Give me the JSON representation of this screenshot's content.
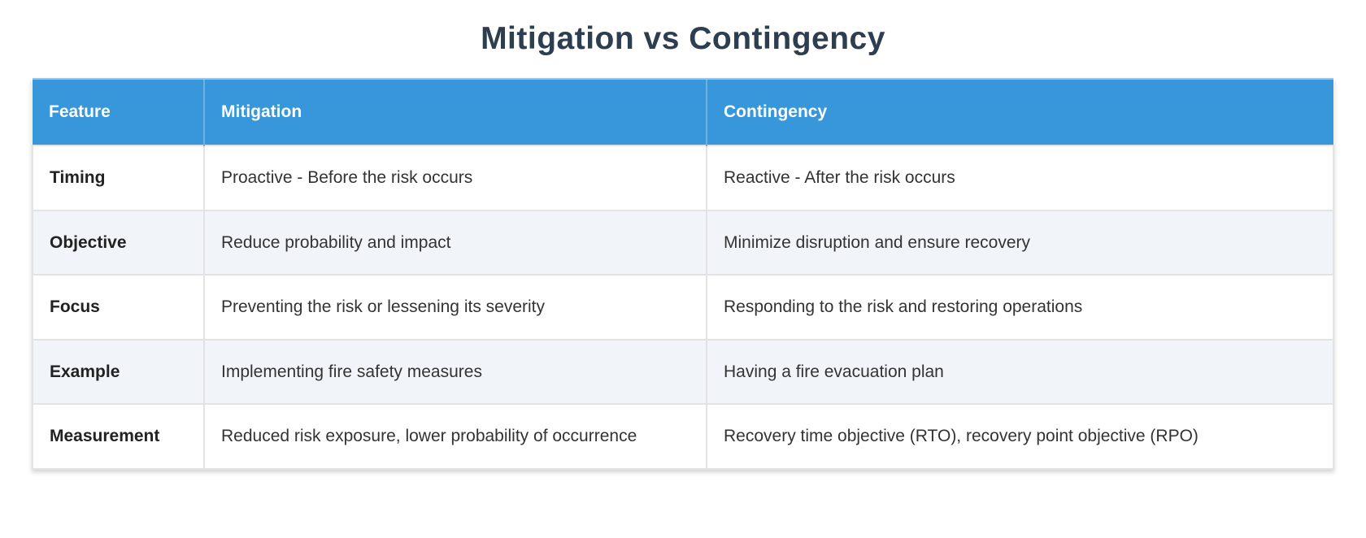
{
  "page": {
    "title": "Mitigation vs Contingency"
  },
  "table": {
    "columns": [
      {
        "id": "feature",
        "label": "Feature"
      },
      {
        "id": "mitigation",
        "label": "Mitigation"
      },
      {
        "id": "contingency",
        "label": "Contingency"
      }
    ],
    "rows": [
      {
        "feature": "Timing",
        "mitigation": "Proactive - Before the risk occurs",
        "contingency": "Reactive - After the risk occurs"
      },
      {
        "feature": "Objective",
        "mitigation": "Reduce probability and impact",
        "contingency": "Minimize disruption and ensure recovery"
      },
      {
        "feature": "Focus",
        "mitigation": "Preventing the risk or lessening its severity",
        "contingency": "Responding to the risk and restoring operations"
      },
      {
        "feature": "Example",
        "mitigation": "Implementing fire safety measures",
        "contingency": "Having a fire evacuation plan"
      },
      {
        "feature": "Measurement",
        "mitigation": "Reduced risk exposure, lower probability of occurrence",
        "contingency": "Recovery time objective (RTO), recovery point objective (RPO)"
      }
    ]
  },
  "colors": {
    "header_bg": "#3797da",
    "header_text": "#ffffff",
    "header_divider": "#6cb1e1",
    "row_bg": "#ffffff",
    "row_alt_bg": "#f1f5f9",
    "border": "#e3e3e3",
    "title_text": "#2d3e50",
    "body_text": "#333333",
    "feature_text": "#222222"
  }
}
